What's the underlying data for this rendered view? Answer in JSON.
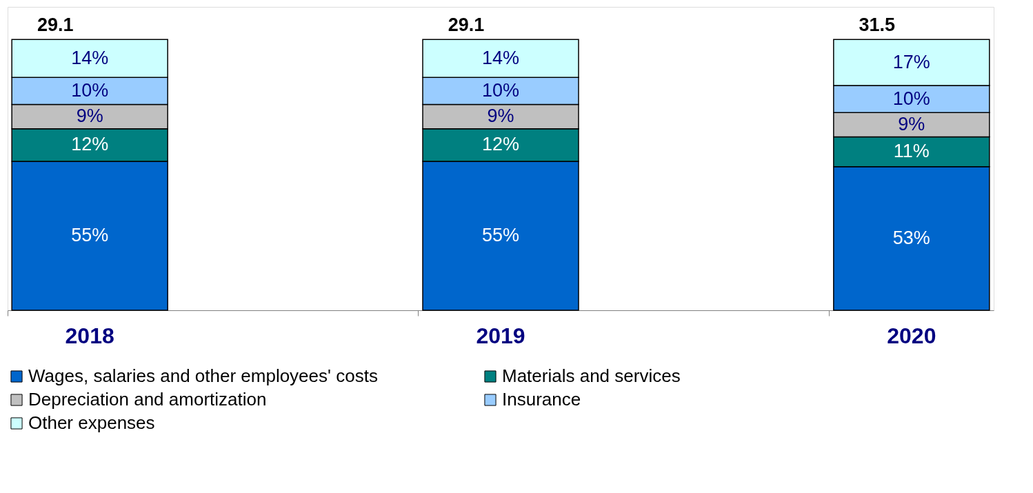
{
  "chart_data": {
    "type": "bar",
    "stacked": true,
    "categories": [
      "2018",
      "2019",
      "2020"
    ],
    "series": [
      {
        "name": "Wages, salaries and other employees' costs",
        "color": "#0066cc",
        "values": [
          55,
          55,
          53
        ],
        "value_labels": [
          "55%",
          "55%",
          "53%"
        ]
      },
      {
        "name": "Materials and services",
        "color": "#008080",
        "values": [
          12,
          12,
          11
        ],
        "value_labels": [
          "12%",
          "12%",
          "11%"
        ]
      },
      {
        "name": "Depreciation and amortization",
        "color": "#c0c0c0",
        "values": [
          9,
          9,
          9
        ],
        "value_labels": [
          "9%",
          "9%",
          "9%"
        ]
      },
      {
        "name": "Insurance",
        "color": "#99ccff",
        "values": [
          10,
          10,
          10
        ],
        "value_labels": [
          "10%",
          "10%",
          "10%"
        ]
      },
      {
        "name": "Other expenses",
        "color": "#ccffff",
        "values": [
          14,
          14,
          17
        ],
        "value_labels": [
          "14%",
          "14%",
          "17%"
        ]
      }
    ],
    "annotations": [
      "29.1",
      "29.1",
      "31.5"
    ],
    "legend": "bottom",
    "grid": false,
    "tick_labels": "x"
  }
}
